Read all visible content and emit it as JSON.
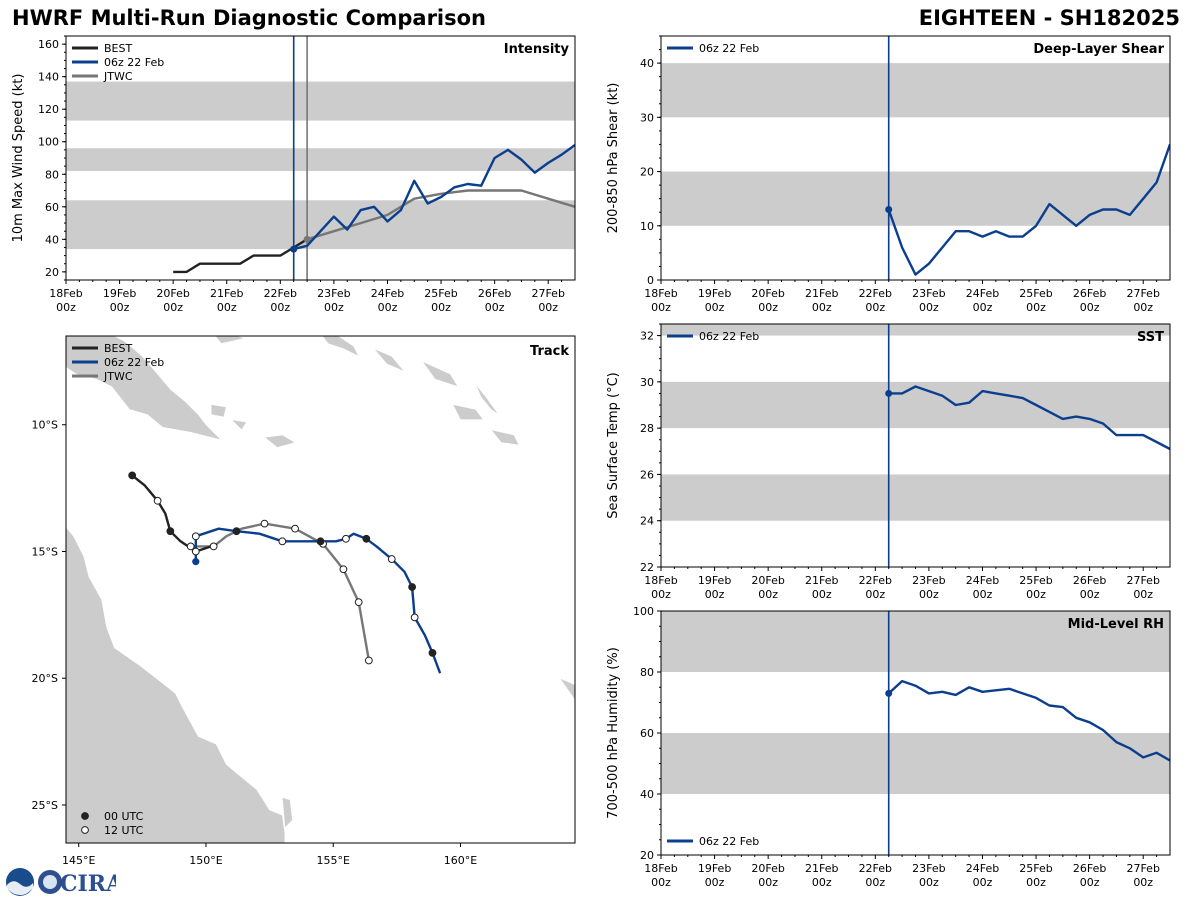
{
  "header": {
    "title_left": "HWRF Multi-Run Diagnostic Comparison",
    "title_right": "EIGHTEEN - SH182025"
  },
  "colors": {
    "best": "#222222",
    "run": "#0b3f8e",
    "jtwc": "#777777",
    "band": "#cccccc",
    "land": "#cccccc"
  },
  "time_axis": {
    "range": [
      0,
      9.5
    ],
    "ticks": [
      0,
      1,
      2,
      3,
      4,
      5,
      6,
      7,
      8,
      9
    ],
    "labels": [
      [
        "18Feb",
        "00z"
      ],
      [
        "19Feb",
        "00z"
      ],
      [
        "20Feb",
        "00z"
      ],
      [
        "21Feb",
        "00z"
      ],
      [
        "22Feb",
        "00z"
      ],
      [
        "23Feb",
        "00z"
      ],
      [
        "24Feb",
        "00z"
      ],
      [
        "25Feb",
        "00z"
      ],
      [
        "26Feb",
        "00z"
      ],
      [
        "27Feb",
        "00z"
      ]
    ],
    "init_time": 4.25,
    "jtwc_time": 4.5
  },
  "logo": {
    "noaa": "NOAA",
    "cira": "CIRA"
  },
  "chart_data": [
    {
      "id": "intensity",
      "type": "line",
      "title": "Intensity",
      "ylabel": "10m Max Wind Speed (kt)",
      "ylim": [
        15,
        165
      ],
      "yticks": [
        20,
        40,
        60,
        80,
        100,
        120,
        140,
        160
      ],
      "bands": [
        [
          34,
          64
        ],
        [
          82,
          96
        ],
        [
          113,
          137
        ]
      ],
      "legend": [
        "BEST",
        "06z 22 Feb",
        "JTWC"
      ],
      "series": [
        {
          "name": "BEST",
          "x": [
            2.0,
            2.25,
            2.5,
            2.75,
            3.0,
            3.25,
            3.5,
            3.75,
            4.0,
            4.25,
            4.5
          ],
          "y": [
            20,
            20,
            25,
            25,
            25,
            25,
            30,
            30,
            30,
            35,
            40
          ]
        },
        {
          "name": "06z 22 Feb",
          "x": [
            4.25,
            4.5,
            4.75,
            5.0,
            5.25,
            5.5,
            5.75,
            6.0,
            6.25,
            6.5,
            6.75,
            7.0,
            7.25,
            7.5,
            7.75,
            8.0,
            8.25,
            8.5,
            8.75,
            9.0,
            9.25,
            9.5
          ],
          "y": [
            34,
            36,
            45,
            54,
            46,
            58,
            60,
            51,
            58,
            76,
            62,
            66,
            72,
            74,
            73,
            90,
            95,
            89,
            81,
            87,
            92,
            98
          ]
        },
        {
          "name": "JTWC",
          "x": [
            4.5,
            5.0,
            5.5,
            6.0,
            6.5,
            7.0,
            7.5,
            8.0,
            8.5,
            9.0,
            9.5
          ],
          "y": [
            40,
            45,
            50,
            55,
            65,
            68,
            70,
            70,
            70,
            65,
            60
          ]
        }
      ]
    },
    {
      "id": "shear",
      "type": "line",
      "title": "Deep-Layer Shear",
      "ylabel": "200-850 hPa Shear (kt)",
      "ylim": [
        0,
        45
      ],
      "yticks": [
        0,
        10,
        20,
        30,
        40
      ],
      "bands": [
        [
          10,
          20
        ],
        [
          30,
          40
        ]
      ],
      "legend": [
        "06z 22 Feb"
      ],
      "series": [
        {
          "name": "06z 22 Feb",
          "x": [
            4.25,
            4.5,
            4.75,
            5.0,
            5.25,
            5.5,
            5.75,
            6.0,
            6.25,
            6.5,
            6.75,
            7.0,
            7.25,
            7.5,
            7.75,
            8.0,
            8.25,
            8.5,
            8.75,
            9.0,
            9.25,
            9.5
          ],
          "y": [
            13,
            6,
            1,
            3,
            6,
            9,
            9,
            8,
            9,
            8,
            8,
            10,
            14,
            12,
            10,
            12,
            13,
            13,
            12,
            15,
            18,
            25
          ]
        }
      ]
    },
    {
      "id": "sst",
      "type": "line",
      "title": "SST",
      "ylabel": "Sea Surface Temp (°C)",
      "ylim": [
        22,
        32.5
      ],
      "yticks": [
        22,
        24,
        26,
        28,
        30,
        32
      ],
      "bands": [
        [
          24,
          26
        ],
        [
          28,
          30
        ],
        [
          32,
          34
        ]
      ],
      "legend": [
        "06z 22 Feb"
      ],
      "series": [
        {
          "name": "06z 22 Feb",
          "x": [
            4.25,
            4.5,
            4.75,
            5.0,
            5.25,
            5.5,
            5.75,
            6.0,
            6.25,
            6.5,
            6.75,
            7.0,
            7.25,
            7.5,
            7.75,
            8.0,
            8.25,
            8.5,
            8.75,
            9.0,
            9.25,
            9.5
          ],
          "y": [
            29.5,
            29.5,
            29.8,
            29.6,
            29.4,
            29.0,
            29.1,
            29.6,
            29.5,
            29.4,
            29.3,
            29.0,
            28.7,
            28.4,
            28.5,
            28.4,
            28.2,
            27.7,
            27.7,
            27.7,
            27.4,
            27.1
          ]
        }
      ]
    },
    {
      "id": "rh",
      "type": "line",
      "title": "Mid-Level RH",
      "ylabel": "700-500 hPa Humidity (%)",
      "ylim": [
        20,
        100
      ],
      "yticks": [
        20,
        40,
        60,
        80,
        100
      ],
      "bands": [
        [
          40,
          60
        ],
        [
          80,
          100
        ]
      ],
      "legend": [
        "06z 22 Feb"
      ],
      "series": [
        {
          "name": "06z 22 Feb",
          "x": [
            4.25,
            4.5,
            4.75,
            5.0,
            5.25,
            5.5,
            5.75,
            6.0,
            6.25,
            6.5,
            6.75,
            7.0,
            7.25,
            7.5,
            7.75,
            8.0,
            8.25,
            8.5,
            8.75,
            9.0,
            9.25,
            9.5
          ],
          "y": [
            73,
            77,
            75.5,
            73,
            73.5,
            72.5,
            75,
            73.5,
            74,
            74.5,
            73,
            71.5,
            69,
            68.5,
            65,
            63.5,
            61,
            57,
            55,
            52,
            53.5,
            51
          ]
        }
      ]
    },
    {
      "id": "track",
      "type": "scatter",
      "title": "Track",
      "xlim": [
        144.5,
        164.5
      ],
      "ylim": [
        -26.5,
        -6.5
      ],
      "xticks": [
        145,
        150,
        155,
        160
      ],
      "xticklabels": [
        "145°E",
        "150°E",
        "155°E",
        "160°E"
      ],
      "yticks": [
        -10,
        -15,
        -20,
        -25
      ],
      "yticklabels": [
        "10°S",
        "15°S",
        "20°S",
        "25°S"
      ],
      "legend": [
        "BEST",
        "06z 22 Feb",
        "JTWC"
      ],
      "marker_legend": [
        "00 UTC",
        "12 UTC"
      ],
      "series": [
        {
          "name": "BEST",
          "points": [
            [
              147.1,
              -12.0
            ],
            [
              147.6,
              -12.4
            ],
            [
              148.1,
              -13.0
            ],
            [
              148.4,
              -13.5
            ],
            [
              148.6,
              -14.2
            ],
            [
              149.0,
              -14.6
            ],
            [
              149.6,
              -15.0
            ],
            [
              150.2,
              -14.8
            ]
          ],
          "markers": [
            "00",
            "",
            "12",
            "",
            "00",
            "",
            "12",
            ""
          ]
        },
        {
          "name": "06z 22 Feb",
          "points": [
            [
              149.6,
              -15.4
            ],
            [
              149.6,
              -15.0
            ],
            [
              149.6,
              -14.4
            ],
            [
              150.5,
              -14.1
            ],
            [
              151.2,
              -14.2
            ],
            [
              152.1,
              -14.3
            ],
            [
              153.0,
              -14.6
            ],
            [
              153.8,
              -14.6
            ],
            [
              154.5,
              -14.6
            ],
            [
              155.1,
              -14.6
            ],
            [
              155.5,
              -14.5
            ],
            [
              155.8,
              -14.3
            ],
            [
              156.3,
              -14.5
            ],
            [
              156.7,
              -14.8
            ],
            [
              157.3,
              -15.3
            ],
            [
              157.8,
              -15.8
            ],
            [
              158.1,
              -16.4
            ],
            [
              158.2,
              -17.6
            ],
            [
              158.6,
              -18.3
            ],
            [
              158.9,
              -19.0
            ],
            [
              159.2,
              -19.8
            ]
          ],
          "markers": [
            "",
            "",
            "12",
            "",
            "00",
            "",
            "12",
            "",
            "00",
            "",
            "12",
            "",
            "00",
            "",
            "12",
            "",
            "00",
            "12",
            "",
            "00",
            ""
          ]
        },
        {
          "name": "JTWC",
          "points": [
            [
              149.4,
              -14.8
            ],
            [
              149.9,
              -14.8
            ],
            [
              150.3,
              -14.8
            ],
            [
              150.8,
              -14.4
            ],
            [
              151.4,
              -14.1
            ],
            [
              152.3,
              -13.9
            ],
            [
              153.5,
              -14.1
            ],
            [
              154.6,
              -14.7
            ],
            [
              155.4,
              -15.7
            ],
            [
              156.0,
              -17.0
            ],
            [
              156.4,
              -19.3
            ]
          ],
          "markers": [
            "12",
            "",
            "12",
            "",
            "",
            "12",
            "12",
            "12",
            "12",
            "12",
            "12"
          ]
        }
      ]
    }
  ]
}
